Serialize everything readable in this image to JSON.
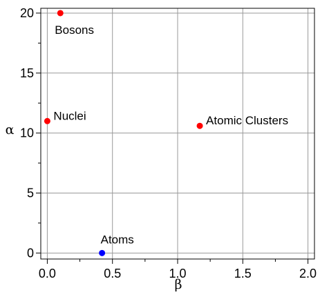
{
  "chart_data": {
    "type": "scatter",
    "xlabel": "β",
    "ylabel": "α",
    "xlim": [
      -0.05,
      2.05
    ],
    "ylim": [
      -0.5,
      20.4
    ],
    "grid": true,
    "x_ticks": [
      0.0,
      0.5,
      1.0,
      1.5,
      2.0
    ],
    "x_tick_labels": [
      "0.0",
      "0.5",
      "1.0",
      "1.5",
      "2.0"
    ],
    "y_ticks": [
      0,
      5,
      10,
      15,
      20
    ],
    "y_tick_labels": [
      "0",
      "5",
      "10",
      "15",
      "20"
    ],
    "points": [
      {
        "label": "Bosons",
        "x": 0.1,
        "y": 20,
        "color": "#ff0000",
        "label_position": "below-right"
      },
      {
        "label": "Nuclei",
        "x": 0.0,
        "y": 11,
        "color": "#ff0000",
        "label_position": "right"
      },
      {
        "label": "Atomic Clusters",
        "x": 1.17,
        "y": 10.6,
        "color": "#ff0000",
        "label_position": "right"
      },
      {
        "label": "Atoms",
        "x": 0.42,
        "y": 0,
        "color": "#0000ff",
        "label_position": "above"
      }
    ]
  }
}
